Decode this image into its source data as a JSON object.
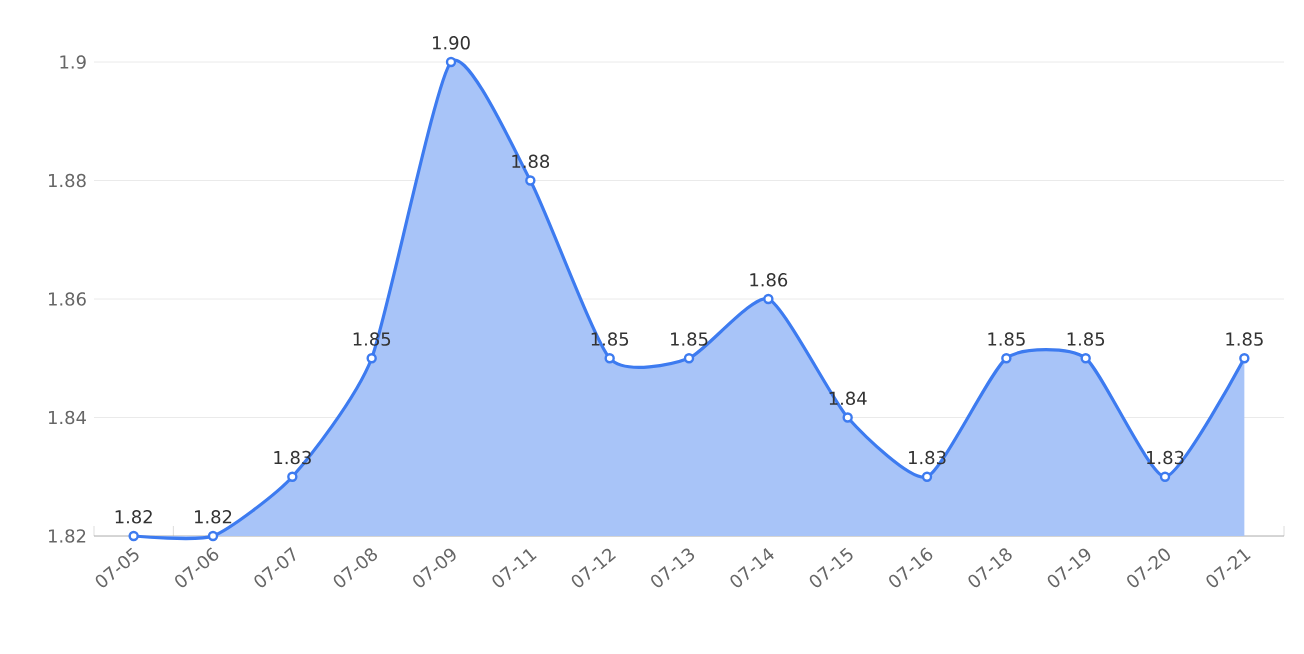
{
  "chart_data": {
    "type": "area",
    "categories": [
      "07-05",
      "07-06",
      "07-07",
      "07-08",
      "07-09",
      "07-11",
      "07-12",
      "07-13",
      "07-14",
      "07-15",
      "07-16",
      "07-18",
      "07-19",
      "07-20",
      "07-21"
    ],
    "series": [
      {
        "color": "#3d7bf0",
        "values": [
          1.82,
          1.82,
          1.83,
          1.85,
          1.9,
          1.88,
          1.85,
          1.85,
          1.86,
          1.84,
          1.83,
          1.85,
          1.85,
          1.83,
          1.85
        ],
        "value_labels": [
          "1.82",
          "1.82",
          "1.83",
          "1.85",
          "1.90",
          "1.88",
          "1.85",
          "1.85",
          "1.86",
          "1.84",
          "1.83",
          "1.85",
          "1.85",
          "1.83",
          "1.85"
        ]
      }
    ],
    "ylim": [
      1.82,
      1.9
    ],
    "yticks": [
      {
        "value": 1.82,
        "label": "1.82"
      },
      {
        "value": 1.84,
        "label": "1.84"
      },
      {
        "value": 1.86,
        "label": "1.86"
      },
      {
        "value": 1.88,
        "label": "1.88"
      },
      {
        "value": 1.9,
        "label": "1.9"
      }
    ],
    "grid": "y",
    "marker": "circle",
    "line_style": "solid"
  }
}
